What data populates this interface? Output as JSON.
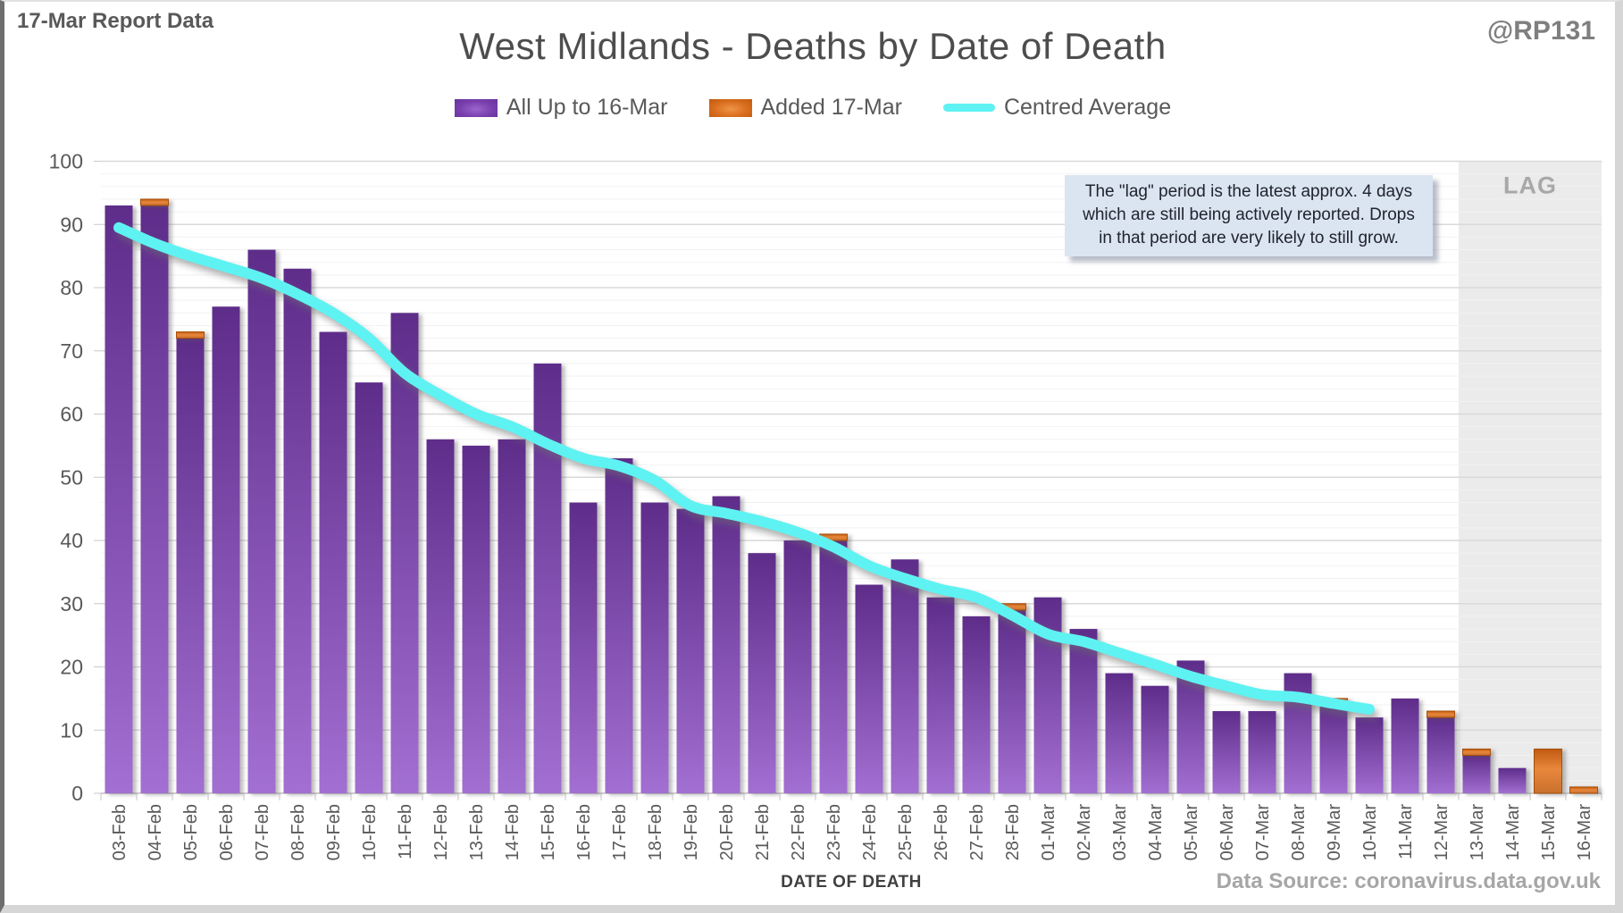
{
  "header": {
    "report_label": "17-Mar Report Data",
    "handle": "@RP131"
  },
  "title": "West Midlands - Deaths by Date of Death",
  "legend": {
    "items": [
      {
        "label": "All Up to 16-Mar",
        "swatch": "purple-bar"
      },
      {
        "label": "Added 17-Mar",
        "swatch": "orange-bar"
      },
      {
        "label": "Centred Average",
        "swatch": "cyan-line"
      }
    ]
  },
  "annotation": {
    "lines": [
      "The \"lag\" period is the latest approx. 4 days",
      "which are still being actively reported.  Drops",
      "in that period are very likely to still grow."
    ]
  },
  "xaxis_title": "DATE OF DEATH",
  "datasource": "Data Source: coronavirus.data.gov.uk",
  "colors": {
    "purple_top": "#5e2d8a",
    "purple_bottom": "#a26fd2",
    "orange_dark": "#c05a10",
    "orange_mid": "#e8873b",
    "orange_low": "#c9702e",
    "cyan_line": "#5ff2f2",
    "lag_bg": "#ebebeb",
    "gridline_major": "#d9d9d9",
    "gridline_minor": "#f2f2f2",
    "axis_line": "#bfbfbf",
    "annotation_bg": "#dbe5f1"
  },
  "chart_data": {
    "type": "bar",
    "title": "West Midlands - Deaths by Date of Death",
    "xlabel": "DATE OF DEATH",
    "ylabel": "",
    "ylim": [
      0,
      100
    ],
    "ytick_step": 10,
    "minor_grid_step": 2,
    "grid": true,
    "legend_position": "top",
    "categories": [
      "03-Feb",
      "04-Feb",
      "05-Feb",
      "06-Feb",
      "07-Feb",
      "08-Feb",
      "09-Feb",
      "10-Feb",
      "11-Feb",
      "12-Feb",
      "13-Feb",
      "14-Feb",
      "15-Feb",
      "16-Feb",
      "17-Feb",
      "18-Feb",
      "19-Feb",
      "20-Feb",
      "21-Feb",
      "22-Feb",
      "23-Feb",
      "24-Feb",
      "25-Feb",
      "26-Feb",
      "27-Feb",
      "28-Feb",
      "01-Mar",
      "02-Mar",
      "03-Mar",
      "04-Mar",
      "05-Mar",
      "06-Mar",
      "07-Mar",
      "08-Mar",
      "09-Mar",
      "10-Mar",
      "11-Mar",
      "12-Mar",
      "13-Mar",
      "14-Mar",
      "15-Mar",
      "16-Mar"
    ],
    "series": [
      {
        "name": "All Up to 16-Mar",
        "type": "bar",
        "color": "purple",
        "values": [
          93,
          93,
          72,
          77,
          86,
          83,
          73,
          65,
          76,
          56,
          55,
          56,
          68,
          46,
          53,
          46,
          45,
          47,
          38,
          40,
          40,
          33,
          37,
          31,
          28,
          29,
          31,
          26,
          19,
          17,
          21,
          13,
          13,
          19,
          14,
          12,
          15,
          12,
          6,
          4,
          0,
          0
        ]
      },
      {
        "name": "Added 17-Mar",
        "type": "bar-stacked-on-top",
        "color": "orange",
        "values": [
          0,
          1,
          1,
          0,
          0,
          0,
          0,
          0,
          0,
          0,
          0,
          0,
          0,
          0,
          0,
          0,
          0,
          0,
          0,
          0,
          1,
          0,
          0,
          0,
          0,
          1,
          0,
          0,
          0,
          0,
          0,
          0,
          0,
          0,
          1,
          0,
          0,
          1,
          1,
          0,
          7,
          1
        ]
      },
      {
        "name": "Centred Average",
        "type": "line",
        "color": "cyan",
        "values": [
          89.5,
          87,
          85,
          83.3,
          81.5,
          79,
          76,
          72,
          66.5,
          63,
          60,
          58,
          55.3,
          53,
          51.8,
          49.5,
          45.5,
          44.3,
          43,
          41.3,
          39,
          36,
          34,
          32.3,
          31,
          28.2,
          25.2,
          24,
          22.2,
          20.4,
          18.5,
          17,
          15.6,
          15.2,
          14.2,
          13.3,
          null,
          null,
          null,
          null,
          null,
          null
        ]
      }
    ],
    "lag_region": {
      "label": "LAG",
      "start_category": "13-Mar",
      "end_category": "16-Mar"
    }
  }
}
